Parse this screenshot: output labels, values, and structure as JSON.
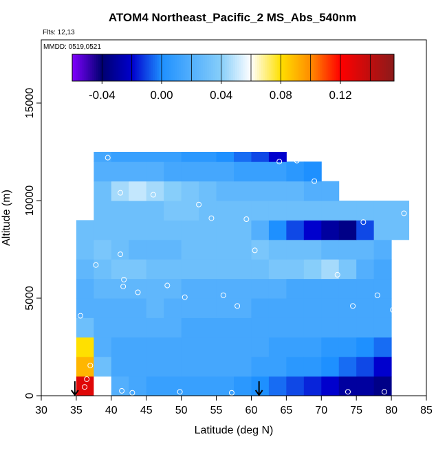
{
  "chart_data": {
    "type": "heatmap",
    "title": "ATOM4 Northeast_Pacific_2 MS_Abs_540nm",
    "annotations": [
      "Flts: 12,13",
      "MMDD: 0519,0521"
    ],
    "xlabel": "Latitude (deg N)",
    "ylabel": "Altitude (m)",
    "xlim": [
      30,
      85
    ],
    "ylim": [
      0,
      18240
    ],
    "xticks": [
      30,
      35,
      40,
      45,
      50,
      55,
      60,
      65,
      70,
      75,
      80,
      85
    ],
    "yticks": [
      0,
      5000,
      10000,
      15000
    ],
    "x_edges": [
      35,
      37.5,
      40,
      42.5,
      45,
      47.5,
      50,
      52.5,
      55,
      57.5,
      60,
      62.5,
      65,
      67.5,
      70,
      72.5,
      75,
      77.5,
      80,
      82.5
    ],
    "y_edges": [
      0,
      1000,
      2000,
      3000,
      4000,
      5000,
      6000,
      7000,
      8000,
      9000,
      10000,
      11000,
      12000,
      12500
    ],
    "z": [
      [
        0.13,
        0.06,
        0.02,
        0.015,
        0.01,
        0.01,
        0.01,
        0.01,
        0.01,
        0.005,
        0.0,
        -0.005,
        -0.01,
        -0.015,
        -0.02,
        -0.03,
        -0.03,
        -0.035,
        null
      ],
      [
        0.09,
        0.03,
        0.015,
        0.015,
        0.015,
        0.015,
        0.015,
        0.015,
        0.015,
        0.015,
        0.01,
        0.01,
        0.005,
        0.005,
        0.0,
        -0.005,
        -0.01,
        -0.02,
        null
      ],
      [
        0.08,
        0.02,
        0.015,
        0.015,
        0.015,
        0.015,
        0.015,
        0.015,
        0.015,
        0.015,
        0.015,
        0.01,
        0.01,
        0.01,
        0.005,
        0.005,
        0.0,
        -0.005,
        null
      ],
      [
        0.03,
        0.02,
        0.02,
        0.02,
        0.02,
        0.02,
        0.015,
        0.015,
        0.015,
        0.015,
        0.015,
        0.015,
        0.015,
        0.015,
        0.015,
        0.015,
        0.015,
        0.015,
        null
      ],
      [
        0.02,
        0.02,
        0.02,
        0.02,
        0.025,
        0.02,
        0.02,
        0.02,
        0.02,
        0.02,
        0.015,
        0.015,
        0.015,
        0.015,
        0.015,
        0.015,
        0.015,
        0.015,
        null
      ],
      [
        0.02,
        0.025,
        0.025,
        0.025,
        0.025,
        0.025,
        0.02,
        0.02,
        0.02,
        0.02,
        0.02,
        0.02,
        0.015,
        0.015,
        0.015,
        0.015,
        0.015,
        0.015,
        null
      ],
      [
        0.025,
        0.03,
        0.035,
        0.035,
        0.03,
        0.03,
        0.03,
        0.03,
        0.03,
        0.03,
        0.03,
        0.035,
        0.035,
        0.04,
        0.045,
        0.035,
        0.02,
        0.015,
        null
      ],
      [
        0.03,
        0.035,
        0.03,
        0.025,
        0.025,
        0.025,
        0.03,
        0.03,
        0.03,
        0.03,
        0.035,
        0.03,
        0.03,
        0.03,
        0.025,
        0.025,
        0.025,
        0.02,
        null
      ],
      [
        0.03,
        0.03,
        0.03,
        0.03,
        0.03,
        0.03,
        0.03,
        0.03,
        0.03,
        0.03,
        0.02,
        0.0,
        -0.01,
        -0.02,
        -0.03,
        -0.035,
        -0.01,
        0.03,
        0.03
      ],
      [
        null,
        0.03,
        0.03,
        0.03,
        0.03,
        0.035,
        0.035,
        0.03,
        0.03,
        0.03,
        0.03,
        0.03,
        0.03,
        0.03,
        0.03,
        0.03,
        0.03,
        0.03,
        0.03
      ],
      [
        null,
        0.03,
        0.045,
        0.05,
        0.045,
        0.04,
        0.035,
        0.03,
        0.025,
        0.025,
        0.025,
        0.025,
        0.025,
        0.02,
        0.02,
        null,
        null,
        null,
        null
      ],
      [
        null,
        0.02,
        0.02,
        0.02,
        0.02,
        0.015,
        0.015,
        0.015,
        0.015,
        0.01,
        0.01,
        0.01,
        0.005,
        0.0,
        null,
        null,
        null,
        null,
        null
      ],
      [
        null,
        0.015,
        0.01,
        0.01,
        0.01,
        0.01,
        0.005,
        0.005,
        0.0,
        -0.005,
        -0.01,
        -0.02,
        null,
        null,
        null,
        null,
        null,
        null,
        null
      ]
    ],
    "points_x": [
      39.5,
      64,
      66.5,
      69,
      41.3,
      46,
      52.5,
      54.3,
      59.3,
      76,
      81.8,
      60.5,
      41.3,
      37.8,
      72.3,
      41.8,
      41.7,
      48,
      43.8,
      50.5,
      56,
      78,
      58,
      74.5,
      80.2,
      35.6,
      37,
      36.5,
      36.2,
      41.5,
      43,
      49.8,
      57.2,
      73.8,
      79
    ],
    "points_y": [
      12200,
      12000,
      12050,
      11000,
      10400,
      10300,
      9800,
      9100,
      9050,
      8900,
      9350,
      7450,
      7250,
      6700,
      6200,
      5950,
      5600,
      5650,
      5300,
      5050,
      5150,
      5150,
      4600,
      4600,
      4400,
      4100,
      1550,
      850,
      450,
      250,
      150,
      200,
      150,
      200,
      200
    ],
    "arrows_x": [
      34.8,
      61.1
    ],
    "colorbar": {
      "lim": [
        -0.06,
        0.156
      ],
      "ticks": [
        -0.04,
        {
          "value": 0,
          "label": "0.00"
        },
        0.04,
        0.08,
        0.12
      ],
      "block_lines": [
        -0.04,
        -0.02,
        0,
        0.02,
        0.04,
        0.06,
        0.08,
        0.1,
        0.12,
        0.14
      ],
      "colorscale": [
        [
          -0.06,
          "#8000ff"
        ],
        [
          -0.04,
          "#000070"
        ],
        [
          -0.02,
          "#0000cd"
        ],
        [
          0,
          "#1e90ff"
        ],
        [
          0.04,
          "#87cefa"
        ],
        [
          0.06,
          "#ffffff"
        ],
        [
          0.08,
          "#ffe000"
        ],
        [
          0.1,
          "#ff8c00"
        ],
        [
          0.12,
          "#ff0000"
        ],
        [
          0.156,
          "#8b1a1a"
        ]
      ]
    }
  }
}
